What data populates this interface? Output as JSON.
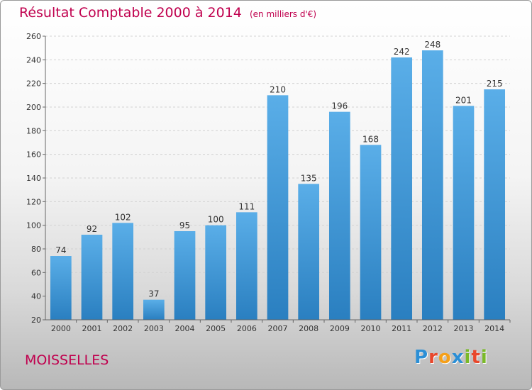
{
  "header": {
    "title": "Résultat Comptable 2000 à 2014",
    "unit_note": "(en milliers d'€)"
  },
  "footer": {
    "commune": "MOISSELLES",
    "logo": [
      "P",
      "r",
      "o",
      "x",
      "i",
      "t",
      "i"
    ],
    "logo_colors": [
      "#2b8fd6",
      "#e8472b",
      "#f5a01a",
      "#2b8fd6",
      "#7ab929",
      "#e8472b",
      "#7ab929"
    ]
  },
  "chart_data": {
    "type": "bar",
    "categories": [
      "2000",
      "2001",
      "2002",
      "2003",
      "2004",
      "2005",
      "2006",
      "2007",
      "2008",
      "2009",
      "2010",
      "2011",
      "2012",
      "2013",
      "2014"
    ],
    "values": [
      74,
      92,
      102,
      37,
      95,
      100,
      111,
      210,
      135,
      196,
      168,
      242,
      248,
      201,
      215
    ],
    "title": "Résultat Comptable 2000 à 2014",
    "ylim": [
      20,
      260
    ],
    "yticks": [
      20,
      40,
      60,
      80,
      100,
      120,
      140,
      160,
      180,
      200,
      220,
      240,
      260
    ],
    "grid": true,
    "bar_color_top": "#5aaee8",
    "bar_color_bottom": "#2a7fc0",
    "title_color": "#c0004e"
  }
}
